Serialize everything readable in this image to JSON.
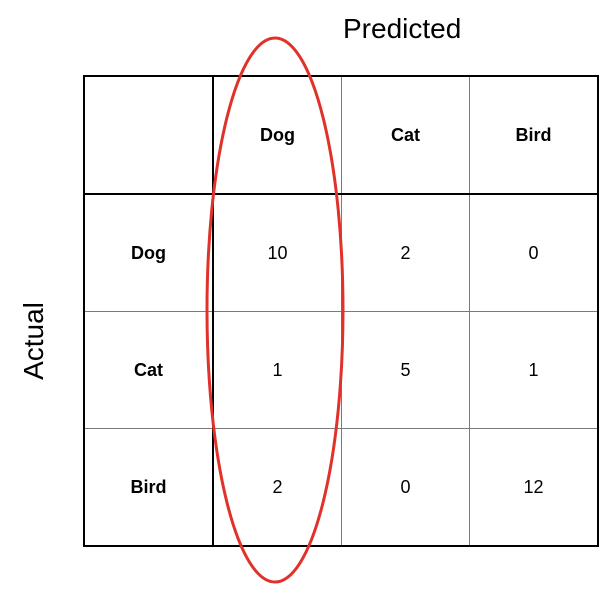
{
  "axis_titles": {
    "predicted": "Predicted",
    "actual": "Actual"
  },
  "matrix": {
    "column_headers": [
      "Dog",
      "Cat",
      "Bird"
    ],
    "rows": [
      {
        "label": "Dog",
        "values": [
          "10",
          "2",
          "0"
        ]
      },
      {
        "label": "Cat",
        "values": [
          "1",
          "5",
          "1"
        ]
      },
      {
        "label": "Bird",
        "values": [
          "2",
          "0",
          "12"
        ]
      }
    ]
  },
  "highlight": {
    "shape": "ellipse",
    "color": "#e0322b",
    "target": "Dog column"
  }
}
